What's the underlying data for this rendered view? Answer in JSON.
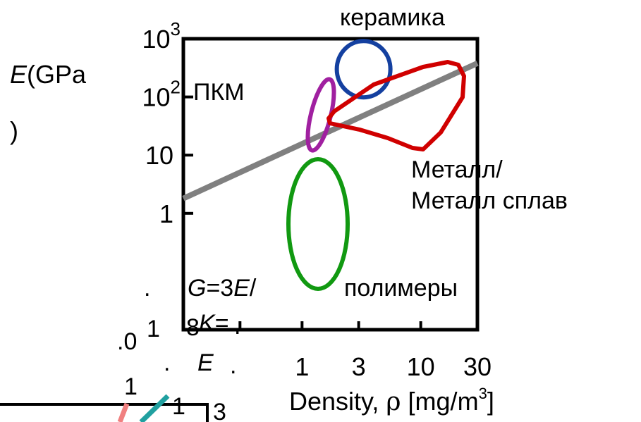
{
  "colors": {
    "ceramics": "#1440a0",
    "composites": "#a020a0",
    "metals": "#d00000",
    "polymers": "#119911",
    "guide_line": "#808080",
    "fragment_pink": "#f08080",
    "fragment_teal": "#20a0a0"
  },
  "chart_data": {
    "type": "scatter",
    "title": "",
    "xlabel_main": "Density, ",
    "xlabel_symbol": "ρ",
    "xlabel_unit": " [mg/m",
    "xlabel_sup": "3",
    "xlabel_end": "]",
    "ylabel_sym": "E",
    "ylabel_unit": "(GPa",
    "ylabel_close": ")",
    "x_scale": "log",
    "y_scale": "log",
    "xlim": [
      0.1,
      30
    ],
    "ylim": [
      0.01,
      1000
    ],
    "x_ticks": [
      {
        "value": 1,
        "label": "1"
      },
      {
        "value": 3,
        "label": "3"
      },
      {
        "value": 10,
        "label": "10"
      },
      {
        "value": 30,
        "label": "30"
      }
    ],
    "y_ticks": [
      {
        "value": 1,
        "label": "1"
      },
      {
        "value": 10,
        "label": "10"
      },
      {
        "value": 100,
        "label": "10",
        "sup": "2"
      },
      {
        "value": 1000,
        "label": "10",
        "sup": "3"
      }
    ],
    "regions": [
      {
        "label": "керамика",
        "center": [
          3.3,
          300
        ],
        "rx_decades": 0.16,
        "ry_decades": 0.29
      },
      {
        "label": "ПКМ",
        "center": [
          1.6,
          25
        ]
      },
      {
        "label": "Металл/",
        "label2": "Металл сплав"
      },
      {
        "label": "полимеры",
        "center": [
          1.5,
          0.3
        ]
      }
    ],
    "guide_line": {
      "x": [
        0.1,
        30
      ],
      "y": [
        1.8,
        380
      ]
    }
  },
  "fragments": {
    "dot_a": ".",
    "g_sym": "G",
    "g_eq": "=3",
    "g_e": "E",
    "g_slash": "/",
    "eight": "8",
    "k_sym": "K",
    "k_eq": "=",
    "dot_b": ".",
    "zero": ".0",
    "one_a": "1",
    "e_bottom": "E",
    "dot_c": ".",
    "dot_d": ".",
    "one_b": "1",
    "one_c": "1",
    "three": "3"
  }
}
